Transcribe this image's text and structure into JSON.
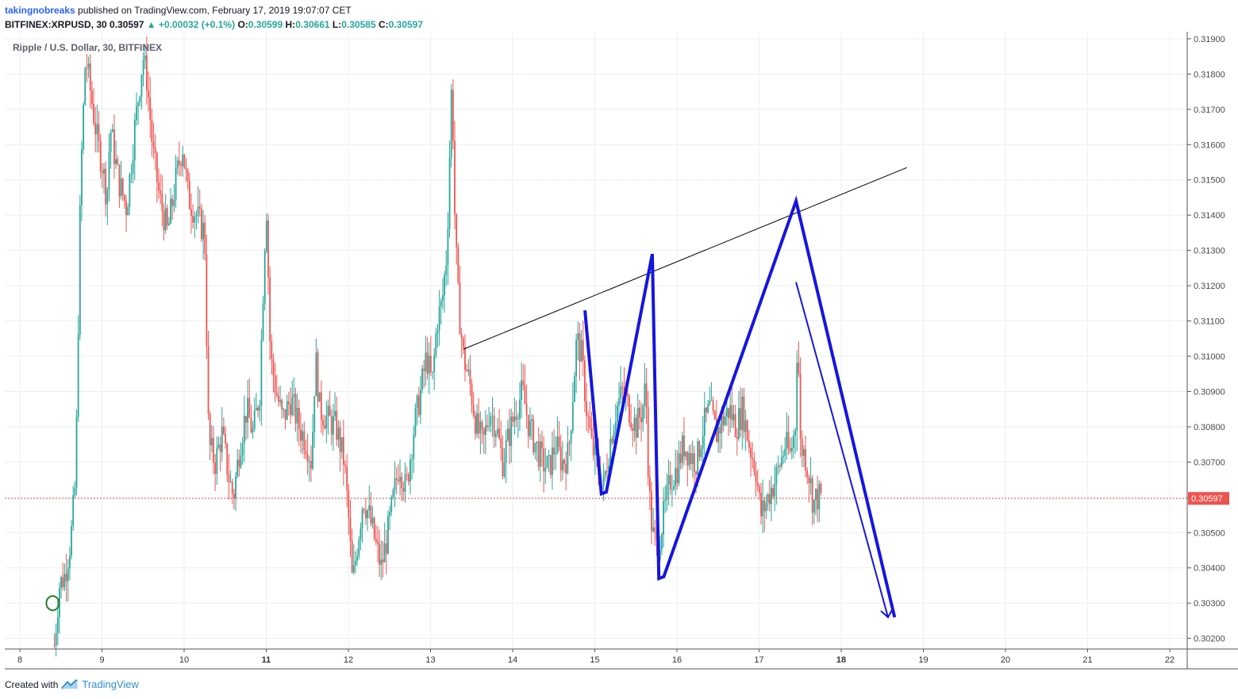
{
  "header": {
    "author": "takingnobreaks",
    "published_text": "published on TradingView.com, February 17, 2019 19:07:07 CET",
    "symbol_interval": "BITFINEX:XRPUSD, 30",
    "last_price": "0.30597",
    "change_arrow": "▲",
    "change": "+0.00032 (+0.1%)",
    "o_label": "O:",
    "o_value": "0.30599",
    "h_label": "H:",
    "h_value": "0.30661",
    "l_label": "L:",
    "l_value": "0.30585",
    "c_label": "C:",
    "c_value": "0.30597"
  },
  "legend": "Ripple / U.S. Dollar, 30, BITFINEX",
  "footer": {
    "created_with": "Created with",
    "brand": "TradingView"
  },
  "colors": {
    "up": "#26a69a",
    "down": "#ef5350",
    "pattern": "#1515e0",
    "trendline": "#000000",
    "price_line": "#ef5350",
    "grid": "#e9eff3"
  },
  "chart_data": {
    "type": "candlestick",
    "symbol": "BITFINEX:XRPUSD",
    "interval": "30",
    "current_price": 0.30597,
    "ylim": [
      0.3017,
      0.3192
    ],
    "y_ticks": [
      "0.31900",
      "0.31800",
      "0.31700",
      "0.31600",
      "0.31500",
      "0.31400",
      "0.31300",
      "0.31200",
      "0.31100",
      "0.31000",
      "0.30900",
      "0.30800",
      "0.30700",
      "0.30600",
      "0.30500",
      "0.30400",
      "0.30300",
      "0.30200"
    ],
    "x_ticks": [
      {
        "label": "8",
        "day": 8,
        "bold": false
      },
      {
        "label": "9",
        "day": 9,
        "bold": false
      },
      {
        "label": "10",
        "day": 10,
        "bold": false
      },
      {
        "label": "11",
        "day": 11,
        "bold": true
      },
      {
        "label": "12",
        "day": 12,
        "bold": false
      },
      {
        "label": "13",
        "day": 13,
        "bold": false
      },
      {
        "label": "14",
        "day": 14,
        "bold": false
      },
      {
        "label": "15",
        "day": 15,
        "bold": false
      },
      {
        "label": "16",
        "day": 16,
        "bold": false
      },
      {
        "label": "17",
        "day": 17,
        "bold": false
      },
      {
        "label": "18",
        "day": 18,
        "bold": true
      },
      {
        "label": "19",
        "day": 19,
        "bold": false
      },
      {
        "label": "20",
        "day": 20,
        "bold": false
      },
      {
        "label": "21",
        "day": 21,
        "bold": false
      },
      {
        "label": "22",
        "day": 22,
        "bold": false
      }
    ],
    "price_path": [
      [
        8.42,
        0.3018
      ],
      [
        8.48,
        0.3035
      ],
      [
        8.55,
        0.3038
      ],
      [
        8.62,
        0.3048
      ],
      [
        8.68,
        0.3065
      ],
      [
        8.74,
        0.315
      ],
      [
        8.8,
        0.3185
      ],
      [
        8.86,
        0.3175
      ],
      [
        8.95,
        0.316
      ],
      [
        9.0,
        0.3155
      ],
      [
        9.06,
        0.3145
      ],
      [
        9.1,
        0.3165
      ],
      [
        9.2,
        0.315
      ],
      [
        9.3,
        0.3142
      ],
      [
        9.4,
        0.3165
      ],
      [
        9.5,
        0.3185
      ],
      [
        9.55,
        0.3178
      ],
      [
        9.62,
        0.3158
      ],
      [
        9.7,
        0.3145
      ],
      [
        9.8,
        0.3135
      ],
      [
        9.9,
        0.315
      ],
      [
        9.98,
        0.316
      ],
      [
        10.05,
        0.3145
      ],
      [
        10.15,
        0.314
      ],
      [
        10.25,
        0.3135
      ],
      [
        10.3,
        0.3075
      ],
      [
        10.38,
        0.307
      ],
      [
        10.46,
        0.3078
      ],
      [
        10.55,
        0.3065
      ],
      [
        10.6,
        0.306
      ],
      [
        10.68,
        0.3075
      ],
      [
        10.76,
        0.3085
      ],
      [
        10.84,
        0.3078
      ],
      [
        10.92,
        0.309
      ],
      [
        11.0,
        0.3145
      ],
      [
        11.05,
        0.31
      ],
      [
        11.12,
        0.309
      ],
      [
        11.2,
        0.3082
      ],
      [
        11.3,
        0.3088
      ],
      [
        11.4,
        0.308
      ],
      [
        11.5,
        0.3075
      ],
      [
        11.55,
        0.307
      ],
      [
        11.6,
        0.31
      ],
      [
        11.65,
        0.3085
      ],
      [
        11.75,
        0.3082
      ],
      [
        11.85,
        0.308
      ],
      [
        11.95,
        0.307
      ],
      [
        12.0,
        0.3055
      ],
      [
        12.05,
        0.3035
      ],
      [
        12.1,
        0.3045
      ],
      [
        12.18,
        0.306
      ],
      [
        12.25,
        0.3055
      ],
      [
        12.32,
        0.3048
      ],
      [
        12.4,
        0.304
      ],
      [
        12.48,
        0.305
      ],
      [
        12.55,
        0.306
      ],
      [
        12.62,
        0.307
      ],
      [
        12.7,
        0.3062
      ],
      [
        12.8,
        0.308
      ],
      [
        12.88,
        0.309
      ],
      [
        12.95,
        0.31
      ],
      [
        13.02,
        0.3092
      ],
      [
        13.08,
        0.311
      ],
      [
        13.14,
        0.3115
      ],
      [
        13.2,
        0.313
      ],
      [
        13.26,
        0.318
      ],
      [
        13.3,
        0.3135
      ],
      [
        13.34,
        0.3115
      ],
      [
        13.4,
        0.31
      ],
      [
        13.48,
        0.3092
      ],
      [
        13.56,
        0.308
      ],
      [
        13.64,
        0.3075
      ],
      [
        13.72,
        0.3085
      ],
      [
        13.8,
        0.308
      ],
      [
        13.88,
        0.307
      ],
      [
        13.96,
        0.3078
      ],
      [
        14.04,
        0.3085
      ],
      [
        14.12,
        0.309
      ],
      [
        14.2,
        0.308
      ],
      [
        14.28,
        0.3075
      ],
      [
        14.36,
        0.307
      ],
      [
        14.44,
        0.3068
      ],
      [
        14.52,
        0.3075
      ],
      [
        14.6,
        0.307
      ],
      [
        14.68,
        0.3072
      ],
      [
        14.78,
        0.3105
      ],
      [
        14.84,
        0.31
      ],
      [
        14.9,
        0.3085
      ],
      [
        14.96,
        0.3075
      ],
      [
        15.04,
        0.3068
      ],
      [
        15.1,
        0.3062
      ],
      [
        15.18,
        0.3075
      ],
      [
        15.26,
        0.3085
      ],
      [
        15.34,
        0.309
      ],
      [
        15.42,
        0.3085
      ],
      [
        15.5,
        0.308
      ],
      [
        15.58,
        0.3085
      ],
      [
        15.62,
        0.3092
      ],
      [
        15.66,
        0.3062
      ],
      [
        15.7,
        0.305
      ],
      [
        15.76,
        0.3045
      ],
      [
        15.84,
        0.3055
      ],
      [
        15.92,
        0.3065
      ],
      [
        16.0,
        0.3068
      ],
      [
        16.08,
        0.3075
      ],
      [
        16.16,
        0.3072
      ],
      [
        16.24,
        0.307
      ],
      [
        16.32,
        0.308
      ],
      [
        16.4,
        0.3085
      ],
      [
        16.48,
        0.3078
      ],
      [
        16.56,
        0.3082
      ],
      [
        16.64,
        0.3085
      ],
      [
        16.72,
        0.308
      ],
      [
        16.8,
        0.3085
      ],
      [
        16.88,
        0.3075
      ],
      [
        16.96,
        0.3068
      ],
      [
        17.02,
        0.3055
      ],
      [
        17.08,
        0.3058
      ],
      [
        17.14,
        0.3062
      ],
      [
        17.2,
        0.3065
      ],
      [
        17.26,
        0.307
      ],
      [
        17.32,
        0.3075
      ],
      [
        17.38,
        0.3072
      ],
      [
        17.44,
        0.308
      ],
      [
        17.47,
        0.311
      ],
      [
        17.5,
        0.3075
      ],
      [
        17.56,
        0.3072
      ],
      [
        17.62,
        0.3065
      ],
      [
        17.66,
        0.3058
      ],
      [
        17.7,
        0.306
      ],
      [
        17.76,
        0.306
      ]
    ],
    "annotations": {
      "trendline": [
        [
          13.4,
          0.3102
        ],
        [
          18.8,
          0.31535
        ]
      ],
      "pattern_path": [
        [
          14.88,
          0.3113
        ],
        [
          15.08,
          0.3061
        ],
        [
          15.14,
          0.30615
        ],
        [
          15.7,
          0.3129
        ],
        [
          15.78,
          0.3037
        ],
        [
          15.84,
          0.30375
        ],
        [
          17.45,
          0.3144
        ],
        [
          18.65,
          0.3026
        ]
      ],
      "pattern_arrow_line": [
        [
          17.45,
          0.3121
        ],
        [
          18.57,
          0.3026
        ]
      ],
      "marker_circle": [
        8.4,
        0.303
      ]
    }
  }
}
